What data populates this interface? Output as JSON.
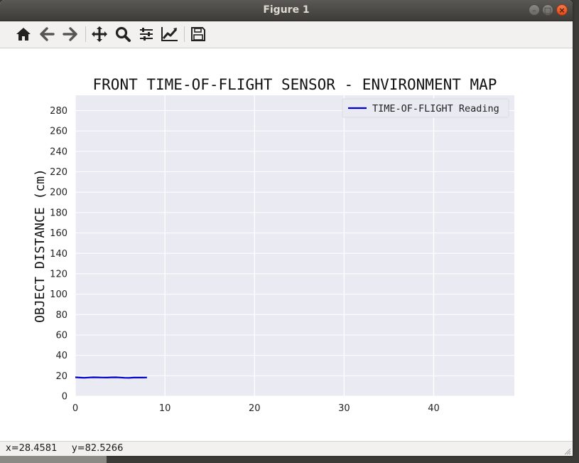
{
  "window": {
    "title": "Figure 1",
    "buttons": [
      "minimize-icon",
      "maximize-icon",
      "close-icon"
    ]
  },
  "toolbar": {
    "tools": [
      {
        "name": "home-icon"
      },
      {
        "name": "back-arrow-icon"
      },
      {
        "name": "forward-arrow-icon"
      },
      {
        "name": "pan-icon"
      },
      {
        "name": "zoom-icon"
      },
      {
        "name": "subplots-config-icon"
      },
      {
        "name": "edit-axis-icon"
      },
      {
        "name": "save-icon"
      }
    ]
  },
  "status": {
    "coords": "x=28.4581     y=82.5266"
  },
  "colors": {
    "plot_bg": "#eaeaf2",
    "line": "#0000cc",
    "grid": "#ffffff"
  },
  "chart_data": {
    "type": "line",
    "title": "FRONT TIME-OF-FLIGHT SENSOR - ENVIRONMENT MAP",
    "xlabel": "",
    "ylabel": "OBJECT DISTANCE (cm)",
    "xlim": [
      0,
      49
    ],
    "ylim": [
      0,
      295
    ],
    "xticks": [
      0,
      10,
      20,
      30,
      40
    ],
    "yticks": [
      0,
      20,
      40,
      60,
      80,
      100,
      120,
      140,
      160,
      180,
      200,
      220,
      240,
      260,
      280
    ],
    "grid": true,
    "legend_position": "top-right",
    "series": [
      {
        "name": "TIME-OF-FLIGHT Reading",
        "x": [
          0,
          0.5,
          1,
          1.5,
          2,
          2.5,
          3,
          3.5,
          4,
          4.5,
          5,
          5.5,
          6,
          6.5,
          7,
          7.5,
          8
        ],
        "y": [
          18.5,
          18.2,
          18.0,
          18.3,
          18.5,
          18.4,
          18.3,
          18.2,
          18.4,
          18.5,
          18.3,
          18.0,
          17.9,
          18.2,
          18.3,
          18.2,
          18.3
        ]
      }
    ]
  }
}
